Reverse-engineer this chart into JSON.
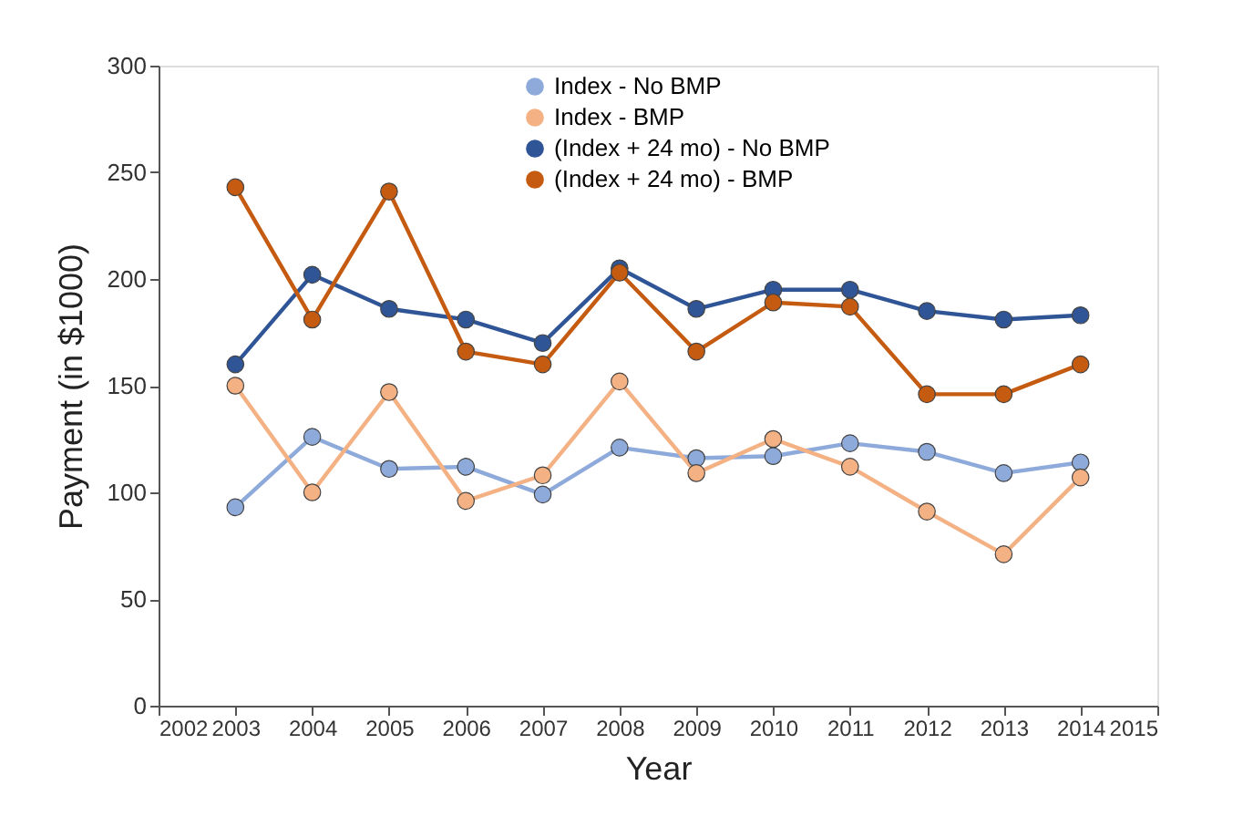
{
  "chart_data": {
    "type": "line",
    "xlabel": "Year",
    "ylabel": "Payment (in $1000)",
    "x": [
      2003,
      2004,
      2005,
      2006,
      2007,
      2008,
      2009,
      2010,
      2011,
      2012,
      2013,
      2014
    ],
    "xlim": [
      2002,
      2015
    ],
    "xticks": [
      2002,
      2003,
      2004,
      2005,
      2006,
      2007,
      2008,
      2009,
      2010,
      2011,
      2012,
      2013,
      2014,
      2015
    ],
    "ylim": [
      0,
      300
    ],
    "yticks": [
      0,
      50,
      100,
      150,
      200,
      250,
      300
    ],
    "marker": "circle",
    "grid": false,
    "legend": "top",
    "series": [
      {
        "name": "Index - No BMP",
        "color": "#8eaadb",
        "values": [
          93,
          126,
          111,
          112,
          99,
          121,
          116,
          117,
          123,
          119,
          109,
          114
        ]
      },
      {
        "name": "Index - BMP",
        "color": "#f4b183",
        "values": [
          150,
          100,
          147,
          96,
          108,
          152,
          109,
          125,
          112,
          91,
          71,
          107
        ]
      },
      {
        "name": "(Index + 24 mo) - No BMP",
        "color": "#2f5597",
        "values": [
          160,
          202,
          186,
          181,
          170,
          205,
          186,
          195,
          195,
          185,
          181,
          183
        ]
      },
      {
        "name": "(Index + 24 mo) - BMP",
        "color": "#c55a11",
        "values": [
          243,
          181,
          241,
          166,
          160,
          203,
          166,
          189,
          187,
          146,
          146,
          160
        ]
      }
    ]
  }
}
